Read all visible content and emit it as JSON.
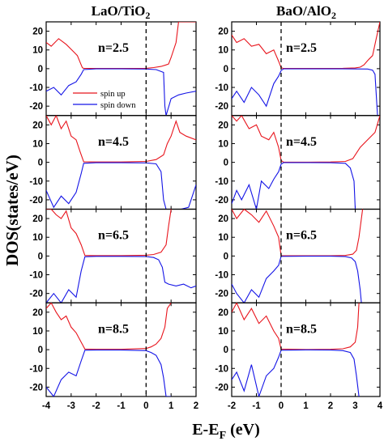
{
  "figure": {
    "y_axis_label": "DOS(states/eV)",
    "x_axis_label": {
      "main": "E-E",
      "sub": "F",
      "tail": " (eV)"
    },
    "legend": {
      "spin_up": "spin up",
      "spin_down": "spin down"
    }
  },
  "colors": {
    "spin_up": "#e8141c",
    "spin_down": "#1414e6",
    "fermi": "#000000"
  },
  "chart_data": [
    {
      "type": "line",
      "title": {
        "main": "LaO/TiO",
        "sub": "2"
      },
      "xlim": [
        -4,
        2
      ],
      "ylim": [
        -25,
        25
      ],
      "xticks": [
        -4,
        -3,
        -2,
        -1,
        0,
        1,
        2
      ],
      "xtick_labels": [
        "-4",
        "-3",
        "-2",
        "-1",
        "0",
        "1",
        "2"
      ],
      "yticks": [
        -20,
        -10,
        0,
        10,
        20
      ],
      "ytick_labels": [
        "-20",
        "-10",
        "0",
        "10",
        "20"
      ],
      "fermi_level": 0,
      "panels": [
        {
          "label": "n=2.5",
          "series": [
            {
              "name": "spin up",
              "x": [
                -4.0,
                -3.8,
                -3.5,
                -3.2,
                -2.9,
                -2.75,
                -2.6,
                -2.55,
                -2.5,
                -2.0,
                -1.0,
                0.0,
                0.3,
                0.6,
                0.8,
                0.9,
                1.0,
                1.2,
                1.3,
                1.35,
                1.5,
                1.7,
                2.0
              ],
              "y": [
                14,
                12,
                16,
                13,
                9,
                7,
                2,
                0.5,
                0.2,
                0.1,
                0.1,
                0.2,
                0.6,
                1.2,
                2,
                2.5,
                6,
                14,
                25,
                25,
                25,
                25,
                25
              ]
            },
            {
              "name": "spin down",
              "x": [
                -4.0,
                -3.7,
                -3.4,
                -3.1,
                -2.8,
                -2.6,
                -2.5,
                -2.0,
                -1.0,
                0.0,
                0.4,
                0.7,
                0.75,
                0.8,
                1.0,
                1.3,
                1.6,
                2.0
              ],
              "y": [
                -12,
                -10,
                -14,
                -9,
                -7,
                -3,
                -0.5,
                -0.1,
                -0.1,
                -0.2,
                -0.5,
                -2,
                -20,
                -25,
                -16,
                -14,
                -13,
                -12
              ]
            }
          ]
        },
        {
          "label": "n=4.5",
          "series": [
            {
              "name": "spin up",
              "x": [
                -4.0,
                -3.8,
                -3.6,
                -3.4,
                -3.2,
                -3.0,
                -2.8,
                -2.65,
                -2.5,
                -2.0,
                -1.0,
                0.0,
                0.4,
                0.7,
                0.85,
                1.0,
                1.2,
                1.35,
                1.6,
                2.0
              ],
              "y": [
                25,
                20,
                25,
                18,
                22,
                14,
                12,
                6,
                0.3,
                0.2,
                0.2,
                0.5,
                1.5,
                4,
                10,
                14,
                22,
                16,
                14,
                12
              ]
            },
            {
              "name": "spin down",
              "x": [
                -4.0,
                -3.7,
                -3.4,
                -3.1,
                -2.8,
                -2.6,
                -2.5,
                -2.0,
                -1.0,
                0.0,
                0.4,
                0.6,
                0.7,
                0.8,
                1.0,
                1.4,
                1.7,
                2.0
              ],
              "y": [
                -15,
                -24,
                -18,
                -22,
                -16,
                -6,
                -0.5,
                -0.2,
                -0.2,
                -0.3,
                -0.8,
                -5,
                -20,
                -25,
                -25,
                -25,
                -24,
                -12
              ]
            }
          ]
        },
        {
          "label": "n=6.5",
          "series": [
            {
              "name": "spin up",
              "x": [
                -4.0,
                -3.8,
                -3.6,
                -3.4,
                -3.2,
                -3.0,
                -2.8,
                -2.6,
                -2.45,
                -2.0,
                -1.0,
                0.0,
                0.3,
                0.6,
                0.8,
                0.9,
                1.0
              ],
              "y": [
                25,
                25,
                22,
                20,
                24,
                15,
                12,
                6,
                0.3,
                0.2,
                0.2,
                0.4,
                0.8,
                2,
                6,
                16,
                25
              ]
            },
            {
              "name": "spin down",
              "x": [
                -4.0,
                -3.7,
                -3.4,
                -3.1,
                -2.8,
                -2.6,
                -2.45,
                -2.0,
                -1.0,
                0.0,
                0.3,
                0.5,
                0.65,
                0.75,
                0.9,
                1.2,
                1.5,
                1.8,
                2.0
              ],
              "y": [
                -25,
                -20,
                -25,
                -18,
                -22,
                -8,
                -0.4,
                -0.2,
                -0.2,
                -0.3,
                -0.8,
                -2,
                -6,
                -14,
                -15,
                -16,
                -15,
                -17,
                -16
              ]
            }
          ]
        },
        {
          "label": "n=8.5",
          "series": [
            {
              "name": "spin up",
              "x": [
                -4.0,
                -3.8,
                -3.6,
                -3.4,
                -3.2,
                -3.0,
                -2.8,
                -2.6,
                -2.45,
                -2.0,
                -1.0,
                0.0,
                0.2,
                0.4,
                0.6,
                0.75,
                0.85,
                1.0
              ],
              "y": [
                22,
                25,
                20,
                16,
                18,
                12,
                9,
                4,
                0.3,
                0.2,
                0.2,
                0.6,
                1.5,
                3,
                6,
                12,
                22,
                25
              ]
            },
            {
              "name": "spin down",
              "x": [
                -4.0,
                -3.7,
                -3.4,
                -3.1,
                -2.8,
                -2.6,
                -2.45,
                -2.0,
                -1.0,
                0.0,
                0.2,
                0.4,
                0.6,
                0.7,
                0.8,
                1.0
              ],
              "y": [
                -20,
                -25,
                -16,
                -12,
                -14,
                -6,
                -0.3,
                -0.2,
                -0.2,
                -0.5,
                -1.5,
                -3,
                -8,
                -15,
                -25,
                -25
              ]
            }
          ]
        }
      ]
    },
    {
      "type": "line",
      "title": {
        "main": "BaO/AlO",
        "sub": "2"
      },
      "xlim": [
        -2,
        4
      ],
      "ylim": [
        -25,
        25
      ],
      "xticks": [
        -2,
        -1,
        0,
        1,
        2,
        3,
        4
      ],
      "xtick_labels": [
        "-2",
        "-1",
        "0",
        "1",
        "2",
        "3",
        "4"
      ],
      "yticks": [
        -20,
        -10,
        0,
        10,
        20
      ],
      "ytick_labels": [
        "-20",
        "-10",
        "0",
        "10",
        "20"
      ],
      "fermi_level": 0,
      "panels": [
        {
          "label": "n=2.5",
          "series": [
            {
              "name": "spin up",
              "x": [
                -2.0,
                -1.8,
                -1.5,
                -1.2,
                -0.9,
                -0.6,
                -0.3,
                -0.1,
                0.0,
                0.1,
                0.5,
                1.5,
                2.5,
                3.0,
                3.2,
                3.35,
                3.45,
                3.55,
                3.7,
                3.85,
                4.0
              ],
              "y": [
                18,
                14,
                16,
                12,
                13,
                8,
                10,
                4,
                0.5,
                0.1,
                0.1,
                0.1,
                0.2,
                0.4,
                0.8,
                2,
                3.5,
                5,
                7,
                16,
                25
              ]
            },
            {
              "name": "spin down",
              "x": [
                -2.0,
                -1.8,
                -1.5,
                -1.2,
                -0.9,
                -0.6,
                -0.3,
                -0.1,
                0.0,
                0.1,
                1.0,
                2.5,
                3.5,
                3.7,
                3.8,
                3.9,
                4.0
              ],
              "y": [
                -16,
                -12,
                -18,
                -10,
                -14,
                -20,
                -8,
                -4,
                -1,
                -0.1,
                -0.1,
                -0.1,
                -0.2,
                -0.8,
                -3,
                -25,
                -25
              ]
            }
          ]
        },
        {
          "label": "n=4.5",
          "series": [
            {
              "name": "spin up",
              "x": [
                -2.0,
                -1.8,
                -1.6,
                -1.3,
                -1.0,
                -0.8,
                -0.5,
                -0.3,
                -0.1,
                0.0,
                0.1,
                1.0,
                2.0,
                2.6,
                2.9,
                3.2,
                3.5,
                3.8,
                4.0
              ],
              "y": [
                25,
                22,
                25,
                18,
                20,
                14,
                12,
                16,
                8,
                1,
                0.1,
                0.1,
                0.2,
                0.5,
                2,
                8,
                12,
                16,
                25
              ]
            },
            {
              "name": "spin down",
              "x": [
                -2.0,
                -1.8,
                -1.6,
                -1.3,
                -1.0,
                -0.8,
                -0.5,
                -0.3,
                -0.1,
                0.0,
                0.1,
                1.0,
                2.0,
                2.6,
                2.8,
                2.95,
                3.0,
                3.2,
                3.6,
                4.0
              ],
              "y": [
                -22,
                -15,
                -20,
                -12,
                -25,
                -10,
                -14,
                -9,
                -5,
                -1,
                -0.1,
                -0.1,
                -0.2,
                -0.5,
                -3,
                -10,
                -25,
                -25,
                -25,
                -25
              ]
            }
          ]
        },
        {
          "label": "n=6.5",
          "series": [
            {
              "name": "spin up",
              "x": [
                -2.0,
                -1.8,
                -1.5,
                -1.2,
                -0.9,
                -0.6,
                -0.3,
                -0.1,
                0.0,
                1.0,
                2.0,
                2.6,
                2.9,
                3.05,
                3.15,
                3.25,
                3.3
              ],
              "y": [
                25,
                20,
                25,
                22,
                18,
                24,
                16,
                10,
                0.2,
                0.1,
                0.1,
                0.3,
                1,
                3,
                10,
                20,
                25
              ]
            },
            {
              "name": "spin down",
              "x": [
                -2.0,
                -1.8,
                -1.5,
                -1.2,
                -0.9,
                -0.6,
                -0.3,
                -0.1,
                0.0,
                1.0,
                2.0,
                2.6,
                2.85,
                3.0,
                3.1,
                3.2,
                3.25
              ],
              "y": [
                -15,
                -20,
                -25,
                -18,
                -22,
                -12,
                -8,
                -5,
                -0.2,
                -0.1,
                -0.1,
                -0.3,
                -1,
                -3,
                -8,
                -18,
                -25
              ]
            }
          ]
        },
        {
          "label": "n=8.5",
          "series": [
            {
              "name": "spin up",
              "x": [
                -2.0,
                -1.8,
                -1.5,
                -1.2,
                -0.9,
                -0.6,
                -0.3,
                -0.1,
                0.0,
                1.0,
                2.0,
                2.5,
                2.8,
                3.0,
                3.1,
                3.15
              ],
              "y": [
                20,
                25,
                16,
                22,
                14,
                18,
                10,
                6,
                0.3,
                0.1,
                0.2,
                0.5,
                1.5,
                4,
                12,
                25
              ]
            },
            {
              "name": "spin down",
              "x": [
                -2.0,
                -1.8,
                -1.5,
                -1.2,
                -0.9,
                -0.6,
                -0.3,
                -0.1,
                0.0,
                1.0,
                2.0,
                2.5,
                2.8,
                2.95,
                3.05,
                3.15
              ],
              "y": [
                -16,
                -12,
                -22,
                -8,
                -25,
                -14,
                -10,
                -4,
                -0.3,
                -0.1,
                -0.2,
                -0.5,
                -1.5,
                -5,
                -14,
                -25
              ]
            }
          ]
        }
      ]
    }
  ]
}
